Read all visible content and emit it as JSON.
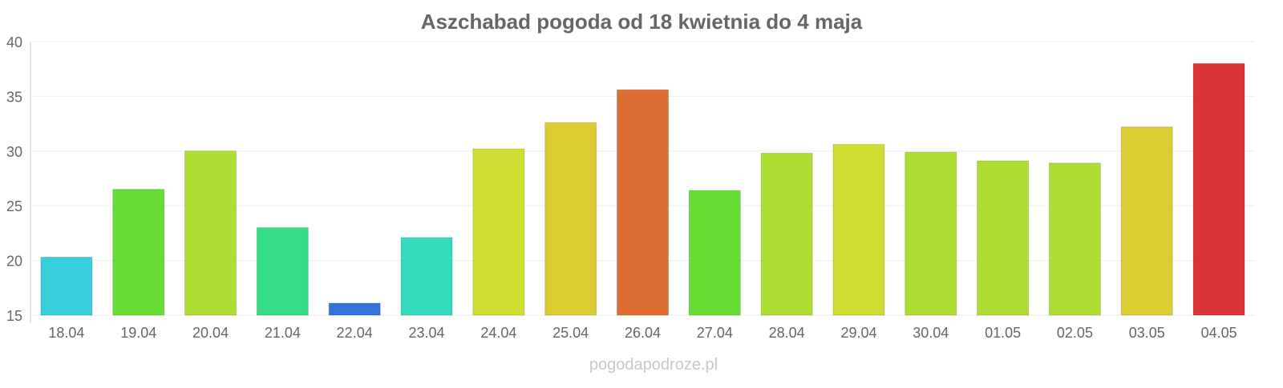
{
  "chart_data": {
    "type": "bar",
    "title": "Aszchabad pogoda od 18 kwietnia do 4 maja",
    "xlabel": "",
    "ylabel": "",
    "ylim": [
      15,
      40
    ],
    "yticks": [
      15,
      20,
      25,
      30,
      35,
      40
    ],
    "grid": true,
    "categories": [
      "18.04",
      "19.04",
      "20.04",
      "21.04",
      "22.04",
      "23.04",
      "24.04",
      "25.04",
      "26.04",
      "27.04",
      "28.04",
      "29.04",
      "30.04",
      "01.05",
      "02.05",
      "03.05",
      "04.05"
    ],
    "values": [
      20.3,
      26.5,
      30.0,
      23.0,
      16.1,
      22.1,
      30.2,
      32.6,
      35.6,
      26.4,
      29.8,
      30.6,
      29.9,
      29.1,
      28.9,
      32.2,
      38.0
    ],
    "colors": [
      "#36cfdb",
      "#67dc34",
      "#aedd33",
      "#35db85",
      "#3573db",
      "#35dbbc",
      "#cfdc31",
      "#dccb33",
      "#dd6e33",
      "#67dc34",
      "#aedd33",
      "#cfdc31",
      "#aedd33",
      "#aedd33",
      "#aedd33",
      "#dccb33",
      "#db3535"
    ]
  },
  "watermark": "pogodapodroze.pl"
}
